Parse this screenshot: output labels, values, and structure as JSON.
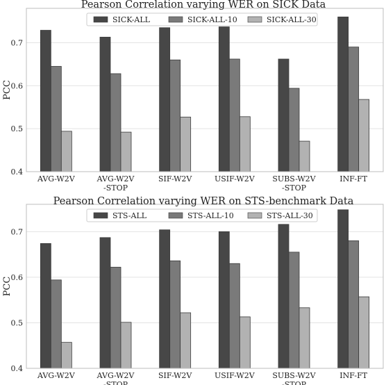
{
  "chart_data": [
    {
      "type": "bar",
      "title": "Pearson Correlation varying WER on SICK Data",
      "xlabel": "",
      "ylabel": "PCC",
      "ylim": [
        0.4,
        0.78
      ],
      "yticks": [
        "0.4",
        "0.5",
        "0.6",
        "0.7"
      ],
      "grid": true,
      "legend_position": "top-center",
      "categories": [
        [
          "AVG-W2V"
        ],
        [
          "AVG-W2V",
          "-STOP"
        ],
        [
          "SIF-W2V"
        ],
        [
          "USIF-W2V"
        ],
        [
          "SUBS-W2V",
          "-STOP"
        ],
        [
          "INF-FT"
        ]
      ],
      "series": [
        {
          "name": "SICK-ALL",
          "color": "#474747",
          "values": [
            0.729,
            0.713,
            0.735,
            0.737,
            0.662,
            0.76
          ]
        },
        {
          "name": "SICK-ALL-10",
          "color": "#7a7a7a",
          "values": [
            0.645,
            0.628,
            0.66,
            0.662,
            0.594,
            0.69
          ]
        },
        {
          "name": "SICK-ALL-30",
          "color": "#b2b2b2",
          "values": [
            0.494,
            0.492,
            0.527,
            0.528,
            0.471,
            0.568
          ]
        }
      ]
    },
    {
      "type": "bar",
      "title": "Pearson Correlation varying WER on STS-benchmark Data",
      "xlabel": "",
      "ylabel": "PCC",
      "ylim": [
        0.4,
        0.76
      ],
      "yticks": [
        "0.4",
        "0.5",
        "0.6",
        "0.7"
      ],
      "grid": true,
      "legend_position": "top-center",
      "categories": [
        [
          "AVG-W2V"
        ],
        [
          "AVG-W2V",
          "-STOP"
        ],
        [
          "SIF-W2V"
        ],
        [
          "USIF-W2V"
        ],
        [
          "SUBS-W2V",
          "-STOP"
        ],
        [
          "INF-FT"
        ]
      ],
      "series": [
        {
          "name": "STS-ALL",
          "color": "#474747",
          "values": [
            0.674,
            0.687,
            0.704,
            0.7,
            0.716,
            0.748
          ]
        },
        {
          "name": "STS-ALL-10",
          "color": "#7a7a7a",
          "values": [
            0.594,
            0.622,
            0.636,
            0.63,
            0.655,
            0.68
          ]
        },
        {
          "name": "STS-ALL-30",
          "color": "#b2b2b2",
          "values": [
            0.457,
            0.501,
            0.522,
            0.513,
            0.533,
            0.557
          ]
        }
      ]
    }
  ]
}
